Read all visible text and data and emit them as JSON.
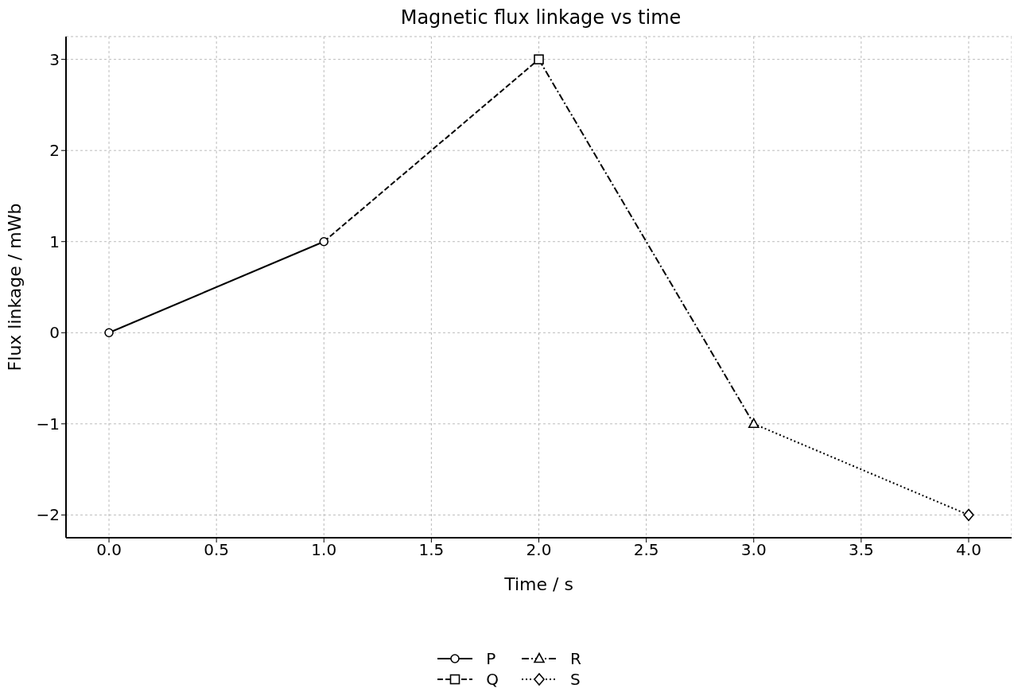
{
  "chart_data": {
    "type": "line",
    "title": "Magnetic flux linkage vs time",
    "xlabel": "Time / s",
    "ylabel": "Flux linkage / mWb",
    "xlim": [
      -0.2,
      4.2
    ],
    "xticks": [
      {
        "value": 0,
        "label": "0.0"
      },
      {
        "value": 0.5,
        "label": "0.5"
      },
      {
        "value": 1,
        "label": "1.0"
      },
      {
        "value": 1.5,
        "label": "1.5"
      },
      {
        "value": 2,
        "label": "2.0"
      },
      {
        "value": 2.5,
        "label": "2.5"
      },
      {
        "value": 3,
        "label": "3.0"
      },
      {
        "value": 3.5,
        "label": "3.5"
      },
      {
        "value": 4,
        "label": "4.0"
      }
    ],
    "ylim": [
      -2.25,
      3.25
    ],
    "yticks": [
      {
        "value": -2,
        "label": "−2"
      },
      {
        "value": -1,
        "label": "−1"
      },
      0,
      1,
      2,
      3
    ],
    "grid": true,
    "legend": "bottom",
    "series": [
      {
        "name": "P",
        "color": "#000000",
        "x": [
          0,
          1
        ],
        "values": [
          0,
          1
        ],
        "marker": "circle",
        "line_style": "solid"
      },
      {
        "name": "Q",
        "color": "#000000",
        "x": [
          1,
          2
        ],
        "values": [
          1,
          3
        ],
        "marker": "square",
        "line_style": "dashed"
      },
      {
        "name": "R",
        "color": "#000000",
        "x": [
          2,
          3
        ],
        "values": [
          3,
          -1
        ],
        "marker": "triangle",
        "line_style": "dashdot"
      },
      {
        "name": "S",
        "color": "#000000",
        "x": [
          3,
          4
        ],
        "values": [
          -1,
          -2
        ],
        "marker": "diamond",
        "line_style": "dotted"
      }
    ]
  }
}
